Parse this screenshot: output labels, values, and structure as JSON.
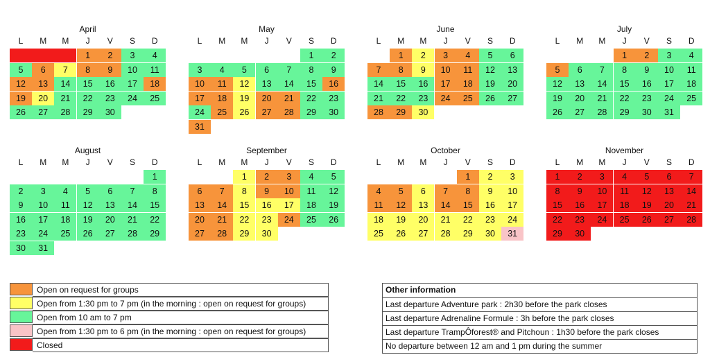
{
  "weekdays": [
    "L",
    "M",
    "M",
    "J",
    "V",
    "S",
    "D"
  ],
  "colors": {
    "O": "#f7943b",
    "Y": "#ffff66",
    "G": "#67f59a",
    "P": "#f9c4c7",
    "R": "#f21b1b"
  },
  "months": [
    {
      "name": "April",
      "blank_before": 3,
      "blank_color": "R",
      "days": 30,
      "colors": "OOGGGOYOOGGOOGGGGOOYGGGGGGGGGG"
    },
    {
      "name": "May",
      "blank_before": 5,
      "blank_color": "",
      "days": 31,
      "colors": "GGGGGGGGGOOYGGGOOOYOOGGGOYOOGGO"
    },
    {
      "name": "June",
      "blank_before": 1,
      "blank_color": "",
      "days": 30,
      "colors": "OYOOGGOOYOOGGGGGOOGGGGGOOGGOOY"
    },
    {
      "name": "July",
      "blank_before": 3,
      "blank_color": "",
      "days": 31,
      "colors": "OOGGOGGGGGGGGGGGGGGGGGGGGGGGGGG"
    },
    {
      "name": "August",
      "blank_before": 6,
      "blank_color": "",
      "days": 31,
      "colors": "GGGGGGGGGGGGGGGGGGGGGGGGGGGGGGG"
    },
    {
      "name": "September",
      "blank_before": 2,
      "blank_color": "",
      "days": 30,
      "colors": "YOOGGOOYOOGGOOYYYGGOOYYOGGOOYY"
    },
    {
      "name": "October",
      "blank_before": 4,
      "blank_color": "",
      "days": 31,
      "colors": "OYYOOYOOYYOOYOOYYYYYYYYYYYYYYYP"
    },
    {
      "name": "November",
      "blank_before": 0,
      "blank_color": "",
      "days": 30,
      "colors": "RRRRRRRRRRRRRRRRRRRRRRRRRRRRRR"
    }
  ],
  "legend": [
    {
      "color": "O",
      "label": "Open on request for groups"
    },
    {
      "color": "Y",
      "label": "Open from 1:30 pm to 7 pm (in the morning : open on request for groups)"
    },
    {
      "color": "G",
      "label": "Open from 10 am to 7 pm"
    },
    {
      "color": "P",
      "label": "Open from 1:30 pm to 6 pm (in the morning : open on request for groups)"
    },
    {
      "color": "R",
      "label": "Closed"
    }
  ],
  "info": {
    "title": "Other information",
    "lines": [
      "Last departure Adventure park : 2h30 before the park closes",
      "Last departure Adrenaline Formule : 3h before the park closes",
      "Last departure TrampÔforest® and Pitchoun : 1h30 before the park closes",
      "No departure between 12 am and 1 pm during the summer"
    ]
  }
}
